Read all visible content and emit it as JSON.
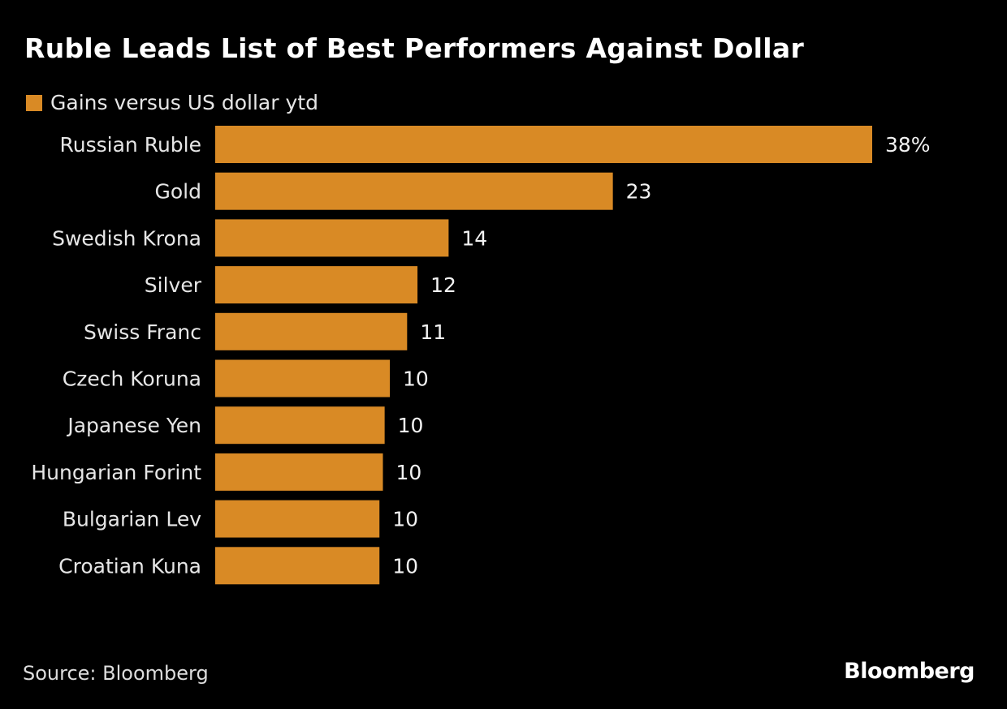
{
  "title": "Ruble Leads List of Best Performers Against Dollar",
  "source": "Source: Bloomberg",
  "logo": "Bloomberg",
  "chart_data": {
    "type": "bar",
    "orientation": "horizontal",
    "categories": [
      "Russian Ruble",
      "Gold",
      "Swedish Krona",
      "Silver",
      "Swiss Franc",
      "Czech Koruna",
      "Japanese Yen",
      "Hungarian Forint",
      "Bulgarian Lev",
      "Croatian Kuna"
    ],
    "series": [
      {
        "name": "Gains versus US dollar ytd",
        "values": [
          38,
          23,
          13.5,
          11.7,
          11.1,
          10.1,
          9.8,
          9.7,
          9.5,
          9.5
        ],
        "data_labels": [
          "38%",
          "23",
          "14",
          "12",
          "11",
          "10",
          "10",
          "10",
          "10",
          "10"
        ]
      }
    ],
    "legend": "top-left",
    "grid": false,
    "colors": {
      "bar": "#d98a25",
      "background": "#000000"
    }
  }
}
